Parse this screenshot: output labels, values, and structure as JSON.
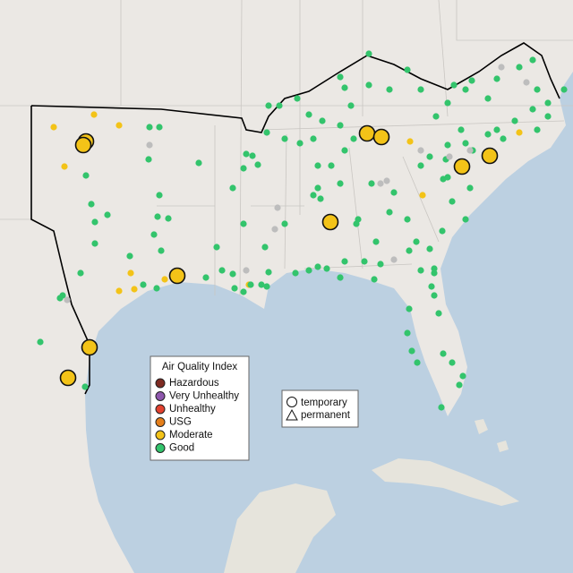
{
  "legend": {
    "title": "Air Quality Index",
    "items": [
      {
        "label": "Hazardous",
        "color": "#7e2b22"
      },
      {
        "label": "Very Unhealthy",
        "color": "#8e57ad"
      },
      {
        "label": "Unhealthy",
        "color": "#e2412f"
      },
      {
        "label": "USG",
        "color": "#e57f1a"
      },
      {
        "label": "Moderate",
        "color": "#f3c318"
      },
      {
        "label": "Good",
        "color": "#33c46c"
      }
    ]
  },
  "shape_legend": {
    "items": [
      "temporary",
      "permanent"
    ]
  }
}
